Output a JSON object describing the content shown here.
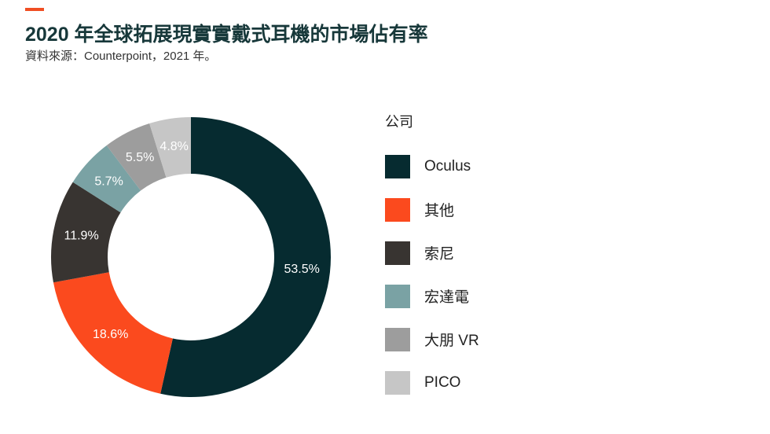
{
  "header": {
    "accent_color": "#f04e23",
    "title": "2020 年全球拓展現實實戴式耳機的市場佔有率",
    "subtitle": "資料來源：Counterpoint，2021 年。"
  },
  "legend": {
    "title": "公司"
  },
  "chart_data": {
    "type": "donut",
    "title": "2020 年全球拓展現實實戴式耳機的市場佔有率",
    "legend_title": "公司",
    "legend_position": "right",
    "unit": "%",
    "slices": [
      {
        "name": "Oculus",
        "value": 53.5,
        "label": "53.5%",
        "color": "#062b30"
      },
      {
        "name": "其他",
        "value": 18.6,
        "label": "18.6%",
        "color": "#fb4a1e"
      },
      {
        "name": "索尼",
        "value": 11.9,
        "label": "11.9%",
        "color": "#383431"
      },
      {
        "name": "宏達電",
        "value": 5.7,
        "label": "5.7%",
        "color": "#7aa2a4"
      },
      {
        "name": "大朋 VR",
        "value": 5.5,
        "label": "5.5%",
        "color": "#9d9d9d"
      },
      {
        "name": "PICO",
        "value": 4.8,
        "label": "4.8%",
        "color": "#c6c6c6"
      }
    ]
  }
}
